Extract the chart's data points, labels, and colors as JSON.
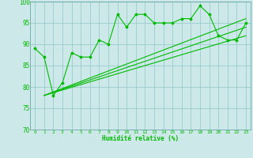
{
  "xlabel": "Humidité relative (%)",
  "xlim": [
    -0.5,
    23.5
  ],
  "ylim": [
    70,
    100
  ],
  "yticks": [
    70,
    75,
    80,
    85,
    90,
    95,
    100
  ],
  "xticks": [
    0,
    1,
    2,
    3,
    4,
    5,
    6,
    7,
    8,
    9,
    10,
    11,
    12,
    13,
    14,
    15,
    16,
    17,
    18,
    19,
    20,
    21,
    22,
    23
  ],
  "bg_color": "#cce8e8",
  "grid_color": "#99cccc",
  "line_color": "#00bb00",
  "data_x": [
    0,
    1,
    2,
    3,
    4,
    5,
    6,
    7,
    8,
    9,
    10,
    11,
    12,
    13,
    14,
    15,
    16,
    17,
    18,
    19,
    20,
    21,
    22,
    23
  ],
  "data_y": [
    89,
    87,
    78,
    81,
    88,
    87,
    87,
    91,
    90,
    97,
    94,
    97,
    97,
    95,
    95,
    95,
    96,
    96,
    99,
    97,
    92,
    91,
    91,
    95
  ],
  "trend_lines": [
    {
      "x": [
        1,
        23
      ],
      "y": [
        78,
        96
      ]
    },
    {
      "x": [
        1,
        23
      ],
      "y": [
        78,
        94
      ]
    },
    {
      "x": [
        1,
        23
      ],
      "y": [
        78,
        92
      ]
    }
  ]
}
